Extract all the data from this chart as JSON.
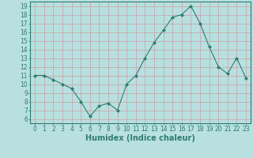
{
  "x": [
    0,
    1,
    2,
    3,
    4,
    5,
    6,
    7,
    8,
    9,
    10,
    11,
    12,
    13,
    14,
    15,
    16,
    17,
    18,
    19,
    20,
    21,
    22,
    23
  ],
  "y": [
    11,
    11,
    10.5,
    10,
    9.5,
    8,
    6.3,
    7.5,
    7.8,
    7,
    10,
    11,
    13,
    14.8,
    16.2,
    17.7,
    18,
    19,
    17,
    14.3,
    12,
    11.2,
    13,
    10.7
  ],
  "line_color": "#2e7d6e",
  "marker": "D",
  "marker_size": 2,
  "bg_color": "#b8e0e0",
  "grid_color": "#c8a0a0",
  "xlabel": "Humidex (Indice chaleur)",
  "ylim": [
    5.5,
    19.5
  ],
  "xlim": [
    -0.5,
    23.5
  ],
  "yticks": [
    6,
    7,
    8,
    9,
    10,
    11,
    12,
    13,
    14,
    15,
    16,
    17,
    18,
    19
  ],
  "xticks": [
    0,
    1,
    2,
    3,
    4,
    5,
    6,
    7,
    8,
    9,
    10,
    11,
    12,
    13,
    14,
    15,
    16,
    17,
    18,
    19,
    20,
    21,
    22,
    23
  ],
  "tick_label_fontsize": 5.5,
  "xlabel_fontsize": 7,
  "axis_color": "#2e7d6e",
  "spine_color": "#2e7d6e"
}
